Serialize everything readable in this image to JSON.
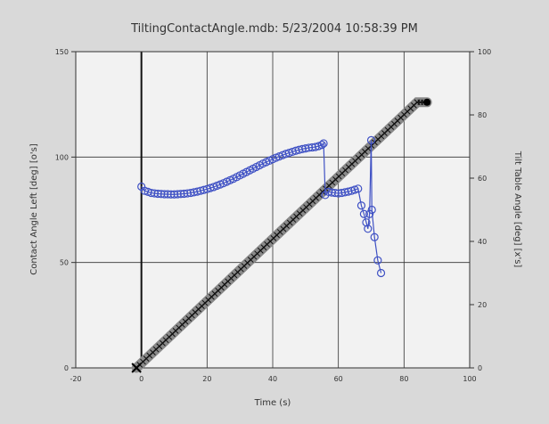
{
  "colors": {
    "background": "#d9d9d9",
    "plot_background": "#f2f2f2",
    "grid": "#333333",
    "left_series": "#3f51c4",
    "right_series": "#111111",
    "right_series_halo": "#8a8a8a"
  },
  "chart_data": {
    "type": "line",
    "title": "TiltingContactAngle.mdb: 5/23/2004 10:58:39 PM",
    "xlabel": "Time (s)",
    "ylabel_left": "Contact Angle Left [deg] [o's]",
    "ylabel_right": "Tilt Table Angle [deg] [x's]",
    "xlim": [
      -20,
      100
    ],
    "ylim_left": [
      0,
      150
    ],
    "ylim_right": [
      0,
      100
    ],
    "x_ticks": [
      "-20",
      "0",
      "20",
      "40",
      "60",
      "80",
      "100"
    ],
    "y_left_ticks": [
      "0",
      "50",
      "100",
      "150"
    ],
    "y_right_ticks": [
      "0",
      "20",
      "40",
      "60",
      "80",
      "100"
    ],
    "grid": true,
    "series": [
      {
        "axis": "left",
        "marker": "circle",
        "points": [
          [
            0,
            86
          ],
          [
            1,
            84
          ],
          [
            2,
            83.5
          ],
          [
            3,
            83
          ],
          [
            4,
            82.8
          ],
          [
            5,
            82.6
          ],
          [
            6,
            82.5
          ],
          [
            7,
            82.4
          ],
          [
            8,
            82.4
          ],
          [
            9,
            82.3
          ],
          [
            10,
            82.3
          ],
          [
            11,
            82.4
          ],
          [
            12,
            82.5
          ],
          [
            13,
            82.6
          ],
          [
            14,
            82.8
          ],
          [
            15,
            83
          ],
          [
            16,
            83.3
          ],
          [
            17,
            83.6
          ],
          [
            18,
            84
          ],
          [
            19,
            84.4
          ],
          [
            20,
            84.8
          ],
          [
            21,
            85.3
          ],
          [
            22,
            85.8
          ],
          [
            23,
            86.4
          ],
          [
            24,
            87
          ],
          [
            25,
            87.6
          ],
          [
            26,
            88.3
          ],
          [
            27,
            89
          ],
          [
            28,
            89.7
          ],
          [
            29,
            90.5
          ],
          [
            30,
            91.3
          ],
          [
            31,
            92.1
          ],
          [
            32,
            92.9
          ],
          [
            33,
            93.7
          ],
          [
            34,
            94.5
          ],
          [
            35,
            95.3
          ],
          [
            36,
            96.1
          ],
          [
            37,
            96.9
          ],
          [
            38,
            97.6
          ],
          [
            39,
            98.3
          ],
          [
            40,
            99
          ],
          [
            41,
            99.7
          ],
          [
            42,
            100.3
          ],
          [
            43,
            100.9
          ],
          [
            44,
            101.5
          ],
          [
            45,
            102
          ],
          [
            46,
            102.5
          ],
          [
            47,
            103
          ],
          [
            48,
            103.4
          ],
          [
            49,
            103.8
          ],
          [
            50,
            104.1
          ],
          [
            51,
            104.4
          ],
          [
            52,
            104.6
          ],
          [
            53,
            104.8
          ],
          [
            54,
            105.2
          ],
          [
            55,
            105.8
          ],
          [
            55.5,
            106.5
          ],
          [
            56,
            82
          ],
          [
            57,
            83.5
          ],
          [
            58,
            83.2
          ],
          [
            59,
            83
          ],
          [
            60,
            82.8
          ],
          [
            61,
            83
          ],
          [
            62,
            83.3
          ],
          [
            63,
            83.6
          ],
          [
            64,
            84
          ],
          [
            65,
            84.5
          ],
          [
            66,
            85
          ],
          [
            67,
            77
          ],
          [
            67.8,
            73
          ],
          [
            68.5,
            69
          ],
          [
            69,
            66
          ],
          [
            69.5,
            73
          ],
          [
            70,
            108
          ],
          [
            70.2,
            75
          ],
          [
            71,
            62
          ],
          [
            72,
            51
          ],
          [
            73,
            45
          ]
        ]
      },
      {
        "axis": "right",
        "marker": "x",
        "points": [
          [
            -1.5,
            0
          ],
          [
            84,
            84
          ],
          [
            87,
            84
          ]
        ]
      }
    ]
  }
}
